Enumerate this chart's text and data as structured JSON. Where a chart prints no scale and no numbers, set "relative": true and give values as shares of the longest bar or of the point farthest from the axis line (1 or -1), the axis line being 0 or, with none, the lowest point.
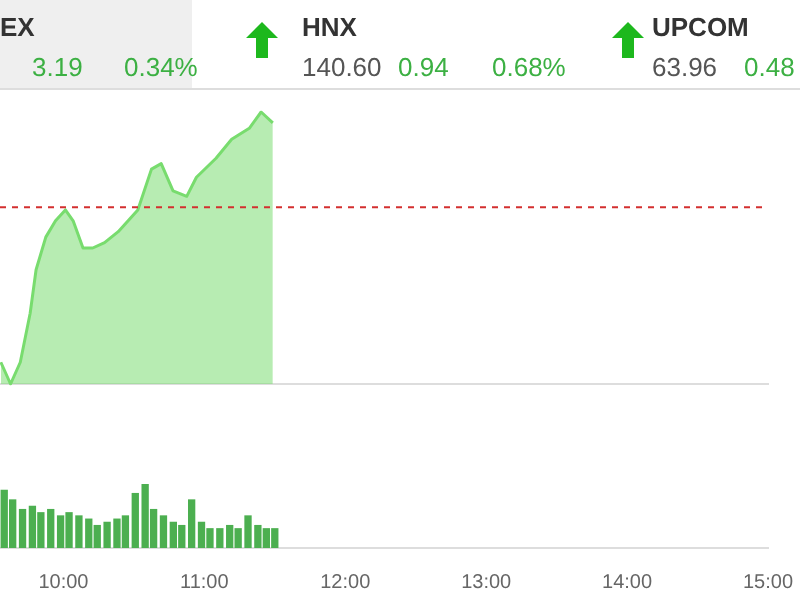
{
  "chart_data": [
    {
      "type": "other",
      "annotations": [
        "EX",
        "3.19",
        "0.34%",
        "HNX",
        "140.60",
        "0.94",
        "0.68%",
        "UPCOM",
        "63.96",
        "0.48"
      ]
    },
    {
      "type": "area",
      "relative": true,
      "tick_labels": false,
      "xlim": [
        9.55,
        15
      ],
      "series": [
        {
          "color": "#78dc6e",
          "x": [
            9.556,
            9.625,
            9.694,
            9.764,
            9.806,
            9.875,
            9.944,
            10.014,
            10.069,
            10.139,
            10.208,
            10.292,
            10.389,
            10.528,
            10.625,
            10.694,
            10.778,
            10.875,
            10.944,
            11.083,
            11.194,
            11.319,
            11.403,
            11.486
          ],
          "values": [
            0.08,
            0,
            0.08,
            0.26,
            0.42,
            0.54,
            0.6,
            0.64,
            0.6,
            0.5,
            0.5,
            0.52,
            0.56,
            0.64,
            0.79,
            0.81,
            0.71,
            0.69,
            0.76,
            0.83,
            0.9,
            0.94,
            1,
            0.96
          ]
        }
      ],
      "ref_lines": [
        {
          "axis": "y",
          "value": 0.65,
          "color": "#d32f2f",
          "line_style": "dashed"
        }
      ]
    },
    {
      "type": "bar",
      "relative": true,
      "tick_labels": "x",
      "xlim": [
        9.55,
        15
      ],
      "xticks": [
        {
          "value": 10,
          "label": "10:00"
        },
        {
          "value": 11,
          "label": "11:00"
        },
        {
          "value": 12,
          "label": "12:00"
        },
        {
          "value": 13,
          "label": "13:00"
        },
        {
          "value": 14,
          "label": "14:00"
        },
        {
          "value": 15,
          "label": "15:00"
        }
      ],
      "x": [
        9.58,
        9.64,
        9.71,
        9.78,
        9.84,
        9.91,
        9.98,
        10.04,
        10.11,
        10.18,
        10.24,
        10.31,
        10.38,
        10.44,
        10.51,
        10.58,
        10.64,
        10.71,
        10.78,
        10.84,
        10.91,
        10.98,
        11.04,
        11.11,
        11.18,
        11.24,
        11.31,
        11.38,
        11.44,
        11.5
      ],
      "values": [
        0.9,
        0.75,
        0.6,
        0.65,
        0.55,
        0.6,
        0.5,
        0.55,
        0.5,
        0.45,
        0.35,
        0.4,
        0.45,
        0.5,
        0.85,
        1,
        0.6,
        0.5,
        0.4,
        0.35,
        0.75,
        0.4,
        0.3,
        0.3,
        0.35,
        0.3,
        0.5,
        0.35,
        0.3,
        0.3
      ],
      "color": "#4caf50"
    }
  ]
}
